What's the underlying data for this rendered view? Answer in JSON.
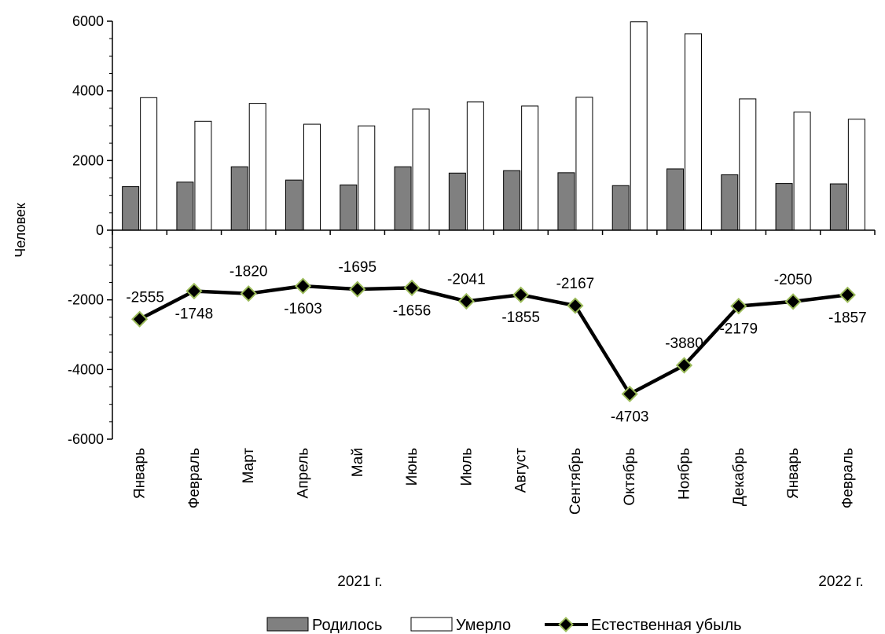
{
  "chart_data": {
    "type": "bar",
    "categories": [
      "Январь",
      "Февраль",
      "Март",
      "Апрель",
      "Май",
      "Июнь",
      "Июль",
      "Август",
      "Сентябрь",
      "Октябрь",
      "Ноябрь",
      "Декабрь",
      "Январь",
      "Февраль"
    ],
    "year_labels": [
      "2021 г.",
      "2022 г."
    ],
    "series": [
      {
        "name": "Родилось",
        "type": "bar",
        "color": "#808080",
        "values": [
          1250,
          1380,
          1820,
          1440,
          1300,
          1820,
          1640,
          1710,
          1650,
          1280,
          1760,
          1590,
          1340,
          1330
        ]
      },
      {
        "name": "Умерло",
        "type": "bar",
        "color": "#ffffff",
        "values": [
          3805,
          3128,
          3640,
          3043,
          2995,
          3476,
          3681,
          3565,
          3817,
          5983,
          5640,
          3769,
          3390,
          3187
        ]
      },
      {
        "name": "Естественная убыль",
        "type": "line",
        "color": "#000000",
        "marker_color": "#9bbb59",
        "values": [
          -2555,
          -1748,
          -1820,
          -1603,
          -1695,
          -1656,
          -2041,
          -1855,
          -2167,
          -4703,
          -3880,
          -2179,
          -2050,
          -1857
        ],
        "labels": [
          "-2555",
          "-1748",
          "-1820",
          "-1603",
          "-1695",
          "-1656",
          "-2041",
          "-1855",
          "-2167",
          "-4703",
          "-3880",
          "-2179",
          "-2050",
          "-1857"
        ],
        "label_positions": [
          "above",
          "below",
          "above",
          "below",
          "above",
          "below",
          "above",
          "below",
          "above",
          "below",
          "above",
          "below",
          "above",
          "below"
        ]
      }
    ],
    "ylabel": "Человек",
    "ylim": [
      -6000,
      6000
    ],
    "yticks": [
      6000,
      4000,
      2000,
      0,
      -2000,
      -4000,
      -6000
    ],
    "ytick_labels": [
      "6000",
      "4000",
      "2000",
      "0",
      "-2000",
      "-4000",
      "-6000"
    ],
    "grid": false,
    "legend_position": "bottom"
  }
}
